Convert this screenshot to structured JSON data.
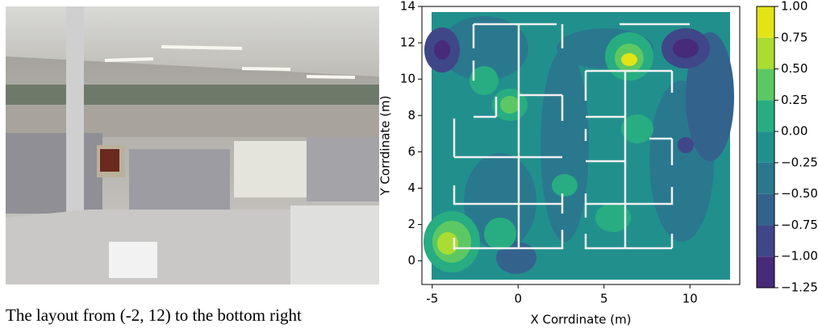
{
  "caption": "The layout from (-2, 12) to the bottom right",
  "chart_data": {
    "type": "contour",
    "xlabel": "X Corrdinate (m)",
    "ylabel": "Y Corrdinate (m)",
    "xlim": [
      -5.6,
      12.9
    ],
    "ylim": [
      -1.3,
      14
    ],
    "xticks": [
      -5,
      0,
      5,
      10
    ],
    "yticks": [
      0,
      2,
      4,
      6,
      8,
      10,
      12,
      14
    ],
    "colorbar": {
      "lim": [
        -1.25,
        1.0
      ],
      "ticks": [
        {
          "value": -1.25,
          "label": "−1.25"
        },
        {
          "value": -1.0,
          "label": "−1.00"
        },
        {
          "value": -0.75,
          "label": "−0.75"
        },
        {
          "value": -0.5,
          "label": "−0.50"
        },
        {
          "value": -0.25,
          "label": "−0.25"
        },
        {
          "value": 0.0,
          "label": "0.00"
        },
        {
          "value": 0.25,
          "label": "0.25"
        },
        {
          "value": 0.5,
          "label": "0.50"
        },
        {
          "value": 0.75,
          "label": "0.75"
        },
        {
          "value": 1.0,
          "label": "1.00"
        }
      ],
      "colors": [
        "#472a7a",
        "#3f4788",
        "#33638d",
        "#2a788e",
        "#21908d",
        "#27ad81",
        "#5cc863",
        "#aadc32",
        "#e2e418"
      ]
    }
  }
}
